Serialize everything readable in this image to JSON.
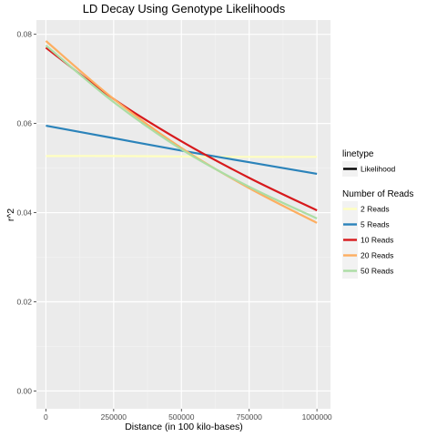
{
  "chart_data": {
    "type": "line",
    "title": "LD Decay Using Genotype Likelihoods",
    "xlabel": "Distance (in 100 kilo-bases)",
    "ylabel": "r^2",
    "xlim": [
      -35000,
      1050000
    ],
    "ylim": [
      -0.004,
      0.0832
    ],
    "x_ticks": [
      0,
      250000,
      500000,
      750000,
      1000000
    ],
    "x_tick_labels": [
      "0",
      "250000",
      "500000",
      "750000",
      "1000000"
    ],
    "y_ticks": [
      0.0,
      0.02,
      0.04,
      0.06,
      0.08
    ],
    "y_tick_labels": [
      "0.00",
      "0.02",
      "0.04",
      "0.06",
      "0.08"
    ],
    "grid": true,
    "x": [
      0,
      250000,
      500000,
      750000,
      1000000
    ],
    "series": [
      {
        "name": "2 Reads",
        "color": "#ffffbf",
        "values": [
          0.0527,
          0.0527,
          0.0526,
          0.0525,
          0.0525
        ]
      },
      {
        "name": "5 Reads",
        "color": "#2b83ba",
        "values": [
          0.0595,
          0.0567,
          0.0539,
          0.0513,
          0.0487
        ]
      },
      {
        "name": "10 Reads",
        "color": "#d7191c",
        "values": [
          0.077,
          0.0655,
          0.056,
          0.0478,
          0.0405
        ]
      },
      {
        "name": "20 Reads",
        "color": "#fdae61",
        "values": [
          0.0785,
          0.0655,
          0.0545,
          0.0455,
          0.0377
        ]
      },
      {
        "name": "50 Reads",
        "color": "#abdda4",
        "values": [
          0.0775,
          0.0648,
          0.0542,
          0.0458,
          0.0387
        ]
      }
    ],
    "legend": {
      "placement": "right",
      "linetype_title": "linetype",
      "linetype_label": "Likelihood",
      "color_title": "Number of Reads"
    }
  }
}
